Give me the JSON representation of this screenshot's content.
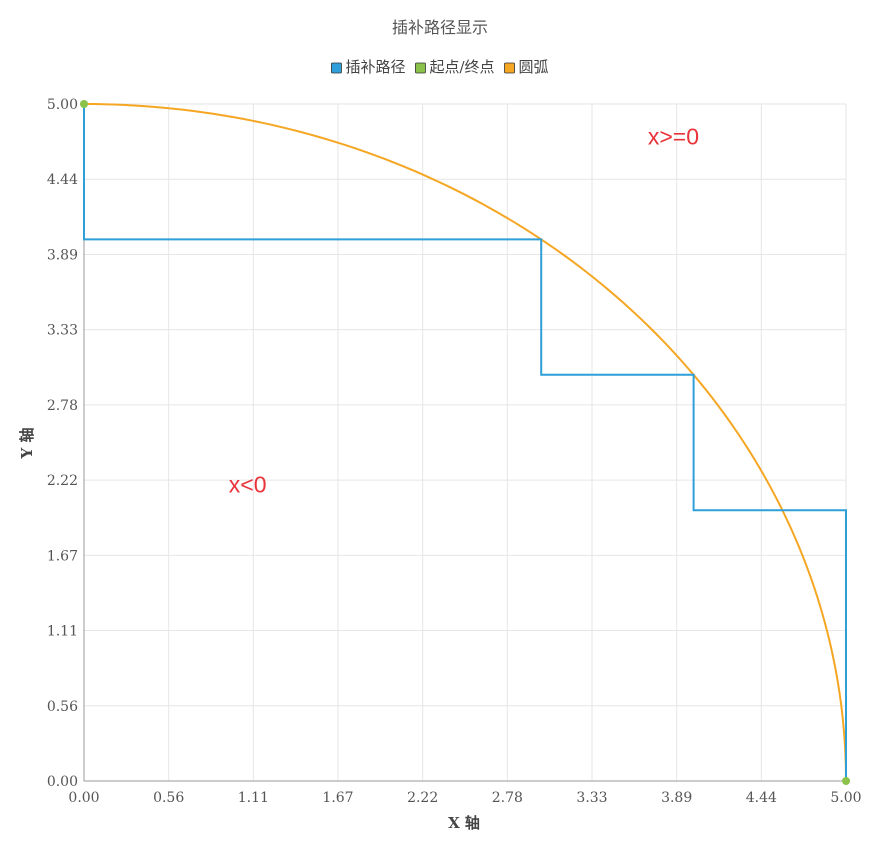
{
  "chart_data": {
    "type": "line",
    "title": "插补路径显示",
    "xlabel": "X 轴",
    "ylabel": "Y 轴",
    "xlim": [
      0,
      5
    ],
    "ylim": [
      0,
      5
    ],
    "grid": true,
    "legend_position": "top-center",
    "x_ticks": [
      "0.00",
      "0.56",
      "1.11",
      "1.67",
      "2.22",
      "2.78",
      "3.33",
      "3.89",
      "4.44",
      "5.00"
    ],
    "y_ticks": [
      "0.00",
      "0.56",
      "1.11",
      "1.67",
      "2.22",
      "2.78",
      "3.33",
      "3.89",
      "4.44",
      "5.00"
    ],
    "series": [
      {
        "name": "插补路径",
        "color": "#2e9fd9",
        "kind": "step",
        "points": [
          [
            0,
            5
          ],
          [
            0,
            4
          ],
          [
            3,
            4
          ],
          [
            3,
            3
          ],
          [
            4,
            3
          ],
          [
            4,
            2
          ],
          [
            5,
            2
          ],
          [
            5,
            0
          ]
        ]
      },
      {
        "name": "起点/终点",
        "color": "#8bc34a",
        "kind": "scatter",
        "points": [
          [
            0,
            5
          ],
          [
            5,
            0
          ]
        ]
      },
      {
        "name": "圆弧",
        "color": "#f5a623",
        "kind": "arc",
        "center": [
          0,
          0
        ],
        "radius": 5,
        "start_angle_deg": 90,
        "end_angle_deg": 0
      }
    ],
    "annotations": [
      {
        "text": "x>=0",
        "x": 3.7,
        "y": 4.7
      },
      {
        "text": "x<0",
        "x": 0.95,
        "y": 2.13
      }
    ]
  }
}
